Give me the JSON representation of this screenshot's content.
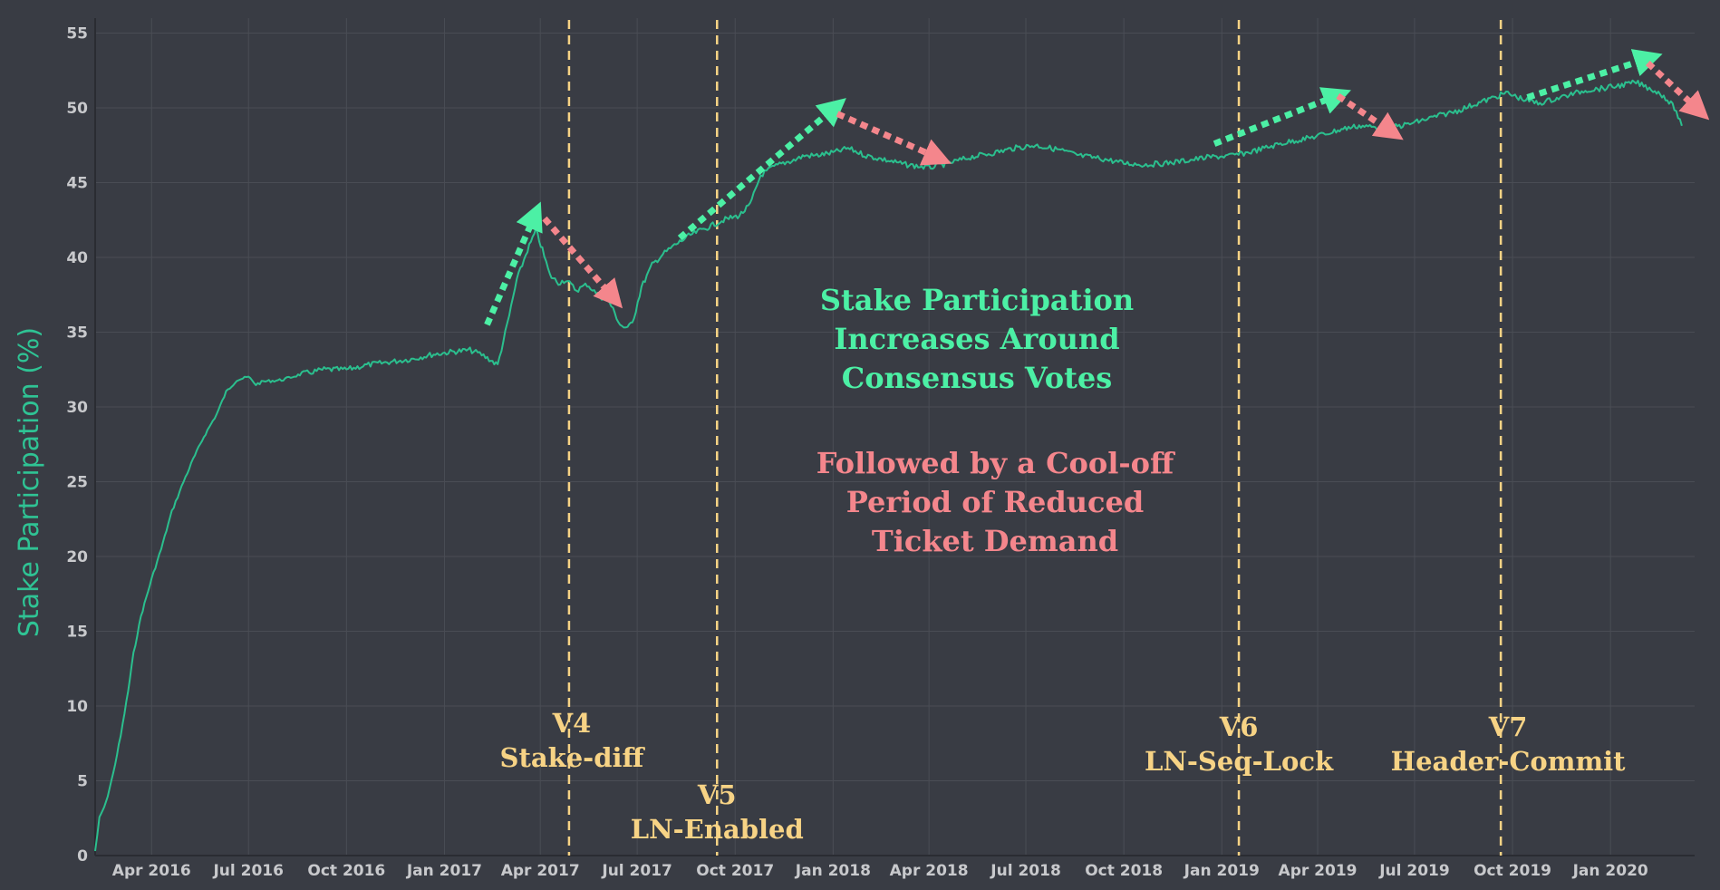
{
  "colors": {
    "background": "#393c44",
    "grid": "#4a4d55",
    "line": "#2bbf8e",
    "vote_line": "#f7d385",
    "increase": "#4cf0a5",
    "cooloff": "#f4868c",
    "tick_text": "#c8c9cc"
  },
  "chart_data": {
    "type": "line",
    "ylabel": "Stake Participation (%)",
    "ylim": [
      0,
      56
    ],
    "yticks": [
      0,
      5,
      10,
      15,
      20,
      25,
      30,
      35,
      40,
      45,
      50,
      55
    ],
    "xlim": [
      "2016-02-08",
      "2020-03-20"
    ],
    "xticks": [
      {
        "date": "2016-04-01",
        "label": "Apr 2016"
      },
      {
        "date": "2016-07-01",
        "label": "Jul 2016"
      },
      {
        "date": "2016-10-01",
        "label": "Oct 2016"
      },
      {
        "date": "2017-01-01",
        "label": "Jan 2017"
      },
      {
        "date": "2017-04-01",
        "label": "Apr 2017"
      },
      {
        "date": "2017-07-01",
        "label": "Jul 2017"
      },
      {
        "date": "2017-10-01",
        "label": "Oct 2017"
      },
      {
        "date": "2018-01-01",
        "label": "Jan 2018"
      },
      {
        "date": "2018-04-01",
        "label": "Apr 2018"
      },
      {
        "date": "2018-07-01",
        "label": "Jul 2018"
      },
      {
        "date": "2018-10-01",
        "label": "Oct 2018"
      },
      {
        "date": "2019-01-01",
        "label": "Jan 2019"
      },
      {
        "date": "2019-04-01",
        "label": "Apr 2019"
      },
      {
        "date": "2019-07-01",
        "label": "Jul 2019"
      },
      {
        "date": "2019-10-01",
        "label": "Oct 2019"
      },
      {
        "date": "2020-01-01",
        "label": "Jan 2020"
      }
    ],
    "grid": true,
    "legend": "none",
    "series": [
      {
        "x": [
          "2016-02-08",
          "2016-02-12",
          "2016-02-18",
          "2016-02-25",
          "2016-03-03",
          "2016-03-10",
          "2016-03-15",
          "2016-03-22",
          "2016-04-01",
          "2016-04-10",
          "2016-04-20",
          "2016-05-01",
          "2016-05-10",
          "2016-05-20",
          "2016-06-01",
          "2016-06-10",
          "2016-06-20",
          "2016-07-01",
          "2016-07-08",
          "2016-07-15",
          "2016-08-01",
          "2016-08-20",
          "2016-09-10",
          "2016-10-01",
          "2016-10-20",
          "2016-11-10",
          "2016-12-01",
          "2016-12-20",
          "2017-01-10",
          "2017-01-25",
          "2017-02-05",
          "2017-02-12",
          "2017-02-20",
          "2017-03-01",
          "2017-03-10",
          "2017-03-20",
          "2017-03-28",
          "2017-04-03",
          "2017-04-10",
          "2017-04-18",
          "2017-04-25",
          "2017-05-05",
          "2017-05-15",
          "2017-05-25",
          "2017-06-05",
          "2017-06-15",
          "2017-06-22",
          "2017-06-28",
          "2017-07-05",
          "2017-07-15",
          "2017-07-25",
          "2017-08-05",
          "2017-08-20",
          "2017-09-05",
          "2017-09-20",
          "2017-10-05",
          "2017-10-15",
          "2017-10-25",
          "2017-11-05",
          "2017-11-15",
          "2017-11-25",
          "2017-12-05",
          "2017-12-15",
          "2018-01-01",
          "2018-01-15",
          "2018-02-01",
          "2018-02-20",
          "2018-03-10",
          "2018-04-01",
          "2018-04-20",
          "2018-05-10",
          "2018-06-01",
          "2018-06-20",
          "2018-07-10",
          "2018-08-01",
          "2018-08-20",
          "2018-09-10",
          "2018-10-01",
          "2018-10-20",
          "2018-11-10",
          "2018-12-01",
          "2018-12-20",
          "2019-01-10",
          "2019-01-25",
          "2019-02-10",
          "2019-02-25",
          "2019-03-10",
          "2019-03-25",
          "2019-04-10",
          "2019-04-25",
          "2019-05-10",
          "2019-05-25",
          "2019-06-10",
          "2019-06-25",
          "2019-07-10",
          "2019-07-25",
          "2019-08-10",
          "2019-08-25",
          "2019-09-10",
          "2019-09-25",
          "2019-10-10",
          "2019-10-25",
          "2019-11-10",
          "2019-11-25",
          "2019-12-10",
          "2019-12-25",
          "2020-01-10",
          "2020-01-25",
          "2020-02-10",
          "2020-02-20",
          "2020-03-01",
          "2020-03-08"
        ],
        "y": [
          0.3,
          2.5,
          3.5,
          5.5,
          8.0,
          11.0,
          13.5,
          16.0,
          18.5,
          20.5,
          23.0,
          25.0,
          26.5,
          28.0,
          29.5,
          31.0,
          31.8,
          32.0,
          31.5,
          31.7,
          31.8,
          32.2,
          32.5,
          32.5,
          32.8,
          33.0,
          33.2,
          33.5,
          33.7,
          33.8,
          33.5,
          33.2,
          32.8,
          35.5,
          38.5,
          40.5,
          41.8,
          40.5,
          38.8,
          38.3,
          38.5,
          37.8,
          38.2,
          37.5,
          37.0,
          35.5,
          35.2,
          36.0,
          38.0,
          39.5,
          40.2,
          40.8,
          41.5,
          42.0,
          42.5,
          42.8,
          43.5,
          45.5,
          46.0,
          46.3,
          46.5,
          46.8,
          46.8,
          47.0,
          47.3,
          46.8,
          46.5,
          46.2,
          46.0,
          46.3,
          46.7,
          47.0,
          47.3,
          47.5,
          47.2,
          46.8,
          46.6,
          46.3,
          46.2,
          46.3,
          46.5,
          46.7,
          46.8,
          47.0,
          47.3,
          47.6,
          47.8,
          48.0,
          48.3,
          48.6,
          48.8,
          48.7,
          48.7,
          48.9,
          49.2,
          49.5,
          49.8,
          50.2,
          50.6,
          51.0,
          50.6,
          50.3,
          50.6,
          50.9,
          51.2,
          51.3,
          51.5,
          51.7,
          51.2,
          50.8,
          50.0,
          48.8
        ]
      }
    ],
    "annotations": {
      "votes": [
        {
          "date": "2017-04-28",
          "version": "V4",
          "name": "Stake-diff"
        },
        {
          "date": "2017-09-14",
          "version": "V5",
          "name": "LN-Enabled"
        },
        {
          "date": "2019-01-17",
          "version": "V6",
          "name": "LN-Seq-Lock"
        },
        {
          "date": "2019-09-20",
          "version": "V7",
          "name": "Header-Commit"
        }
      ],
      "headline": [
        "Stake Participation",
        "Increases Around",
        "Consensus Votes"
      ],
      "subheadline": [
        "Followed by a Cool-off",
        "Period of Reduced",
        "Ticket Demand"
      ]
    },
    "arrows": {
      "increase": [
        {
          "from": [
            "2017-02-10",
            35.5
          ],
          "to": [
            "2017-03-25",
            42.5
          ]
        },
        {
          "from": [
            "2017-08-10",
            41.3
          ],
          "to": [
            "2017-12-30",
            49.8
          ]
        },
        {
          "from": [
            "2018-12-25",
            47.6
          ],
          "to": [
            "2019-04-15",
            50.7
          ]
        },
        {
          "from": [
            "2019-10-15",
            50.7
          ],
          "to": [
            "2020-02-01",
            53.2
          ]
        }
      ],
      "cooloff": [
        {
          "from": [
            "2017-04-05",
            42.6
          ],
          "to": [
            "2017-06-05",
            37.6
          ]
        },
        {
          "from": [
            "2018-01-05",
            49.6
          ],
          "to": [
            "2018-04-05",
            46.8
          ]
        },
        {
          "from": [
            "2019-04-20",
            50.8
          ],
          "to": [
            "2019-06-05",
            48.6
          ]
        },
        {
          "from": [
            "2020-02-05",
            53.0
          ],
          "to": [
            "2020-03-20",
            50.1
          ]
        }
      ]
    }
  }
}
